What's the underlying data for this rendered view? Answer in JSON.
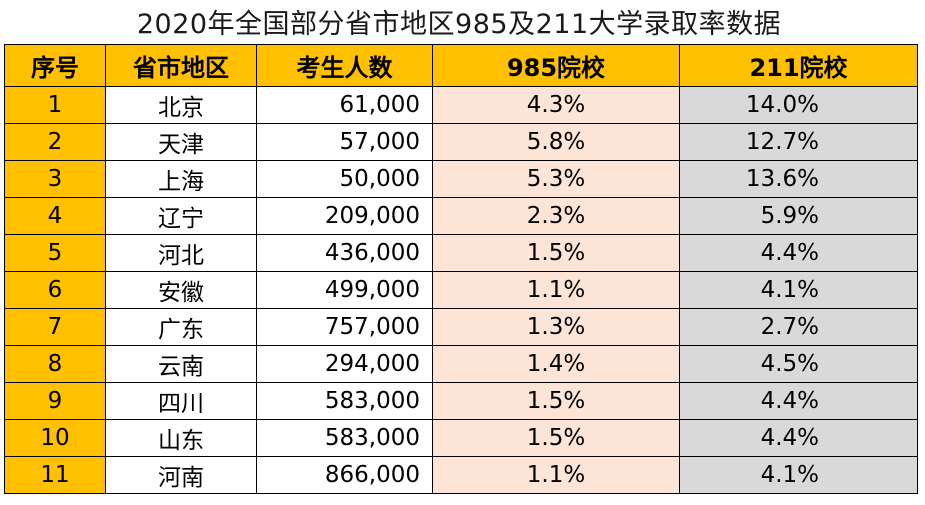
{
  "title": "2020年全国部分省市地区985及211大学录取率数据",
  "headers": {
    "index": "序号",
    "region": "省市地区",
    "examinees": "考生人数",
    "rate985": "985院校",
    "rate211": "211院校"
  },
  "colors": {
    "header_fill": "#ffc000",
    "index_fill": "#ffc000",
    "rate985_fill": "#fce4d6",
    "rate211_fill": "#d9d9d9"
  },
  "rows": [
    {
      "index": "1",
      "region": "北京",
      "examinees": "61,000",
      "rate985": "4.3%",
      "rate211": "14.0%"
    },
    {
      "index": "2",
      "region": "天津",
      "examinees": "57,000",
      "rate985": "5.8%",
      "rate211": "12.7%"
    },
    {
      "index": "3",
      "region": "上海",
      "examinees": "50,000",
      "rate985": "5.3%",
      "rate211": "13.6%"
    },
    {
      "index": "4",
      "region": "辽宁",
      "examinees": "209,000",
      "rate985": "2.3%",
      "rate211": "5.9%"
    },
    {
      "index": "5",
      "region": "河北",
      "examinees": "436,000",
      "rate985": "1.5%",
      "rate211": "4.4%"
    },
    {
      "index": "6",
      "region": "安徽",
      "examinees": "499,000",
      "rate985": "1.1%",
      "rate211": "4.1%"
    },
    {
      "index": "7",
      "region": "广东",
      "examinees": "757,000",
      "rate985": "1.3%",
      "rate211": "2.7%"
    },
    {
      "index": "8",
      "region": "云南",
      "examinees": "294,000",
      "rate985": "1.4%",
      "rate211": "4.5%"
    },
    {
      "index": "9",
      "region": "四川",
      "examinees": "583,000",
      "rate985": "1.5%",
      "rate211": "4.4%"
    },
    {
      "index": "10",
      "region": "山东",
      "examinees": "583,000",
      "rate985": "1.5%",
      "rate211": "4.4%"
    },
    {
      "index": "11",
      "region": "河南",
      "examinees": "866,000",
      "rate985": "1.1%",
      "rate211": "4.1%"
    }
  ]
}
